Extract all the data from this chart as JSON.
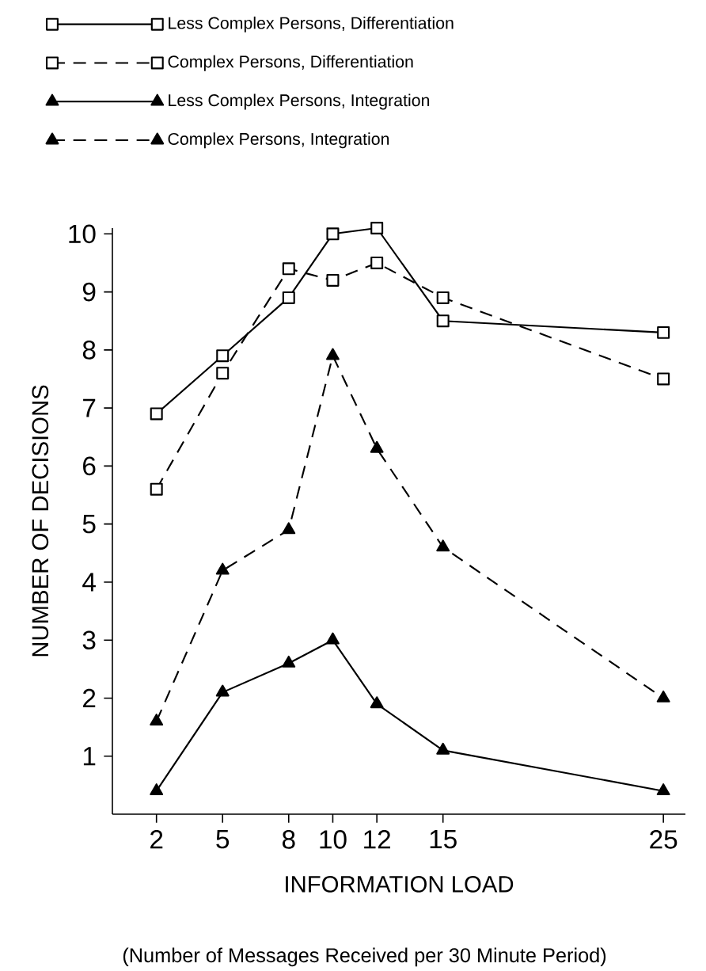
{
  "chart_data": {
    "type": "line",
    "xlabel": "INFORMATION LOAD",
    "ylabel": "NUMBER OF DECISIONS",
    "annotations": [
      "(Number of Messages Received per 30 Minute Period)"
    ],
    "x": [
      2,
      5,
      8,
      10,
      12,
      15,
      25
    ],
    "xlim": [
      0,
      26
    ],
    "ylim": [
      0,
      10.1
    ],
    "xticks": [
      2,
      5,
      8,
      10,
      12,
      15,
      25
    ],
    "yticks": [
      1,
      2,
      3,
      4,
      5,
      6,
      7,
      8,
      9,
      10
    ],
    "legend": "top",
    "series": [
      {
        "name": "Less Complex Persons, Differentiation",
        "color": "#000000",
        "marker": "square",
        "line_style": "solid",
        "values": [
          6.9,
          7.9,
          8.9,
          10.0,
          10.1,
          8.5,
          8.3
        ]
      },
      {
        "name": "Complex Persons, Differentiation",
        "color": "#000000",
        "marker": "square",
        "line_style": "dashed",
        "values": [
          5.6,
          7.6,
          9.4,
          9.2,
          9.5,
          8.9,
          7.5
        ]
      },
      {
        "name": "Less Complex Persons, Integration",
        "color": "#000000",
        "marker": "triangle",
        "line_style": "solid",
        "values": [
          0.4,
          2.1,
          2.6,
          3.0,
          1.9,
          1.1,
          0.4
        ]
      },
      {
        "name": "Complex Persons, Integration",
        "color": "#000000",
        "marker": "triangle",
        "line_style": "dashed",
        "values": [
          1.6,
          4.2,
          4.9,
          7.9,
          6.3,
          4.6,
          2.0
        ]
      }
    ]
  }
}
